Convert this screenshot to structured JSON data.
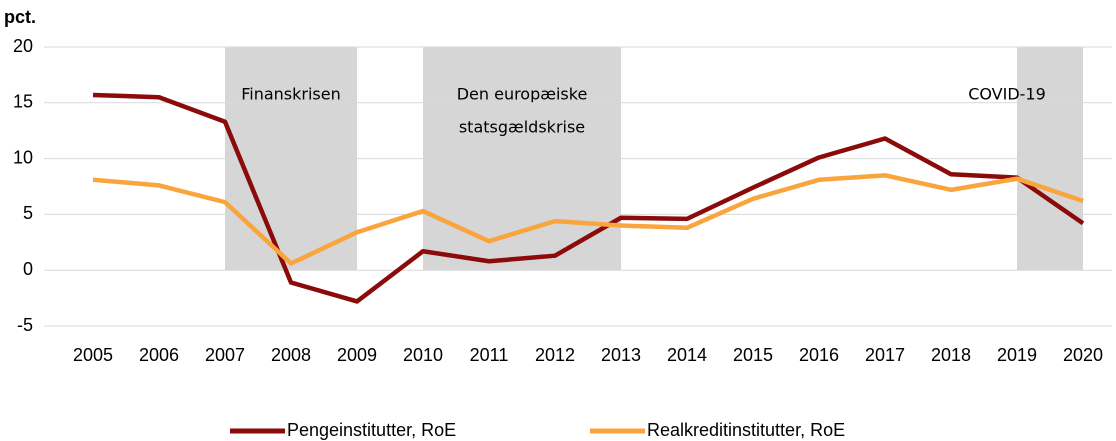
{
  "chart_data": {
    "type": "line",
    "y_label": "pct.",
    "categories": [
      "2005",
      "2006",
      "2007",
      "2008",
      "2009",
      "2010",
      "2011",
      "2012",
      "2013",
      "2014",
      "2015",
      "2016",
      "2017",
      "2018",
      "2019",
      "2020"
    ],
    "series": [
      {
        "name": "Pengeinstitutter, RoE",
        "color": "#8b0a0a",
        "values": [
          15.7,
          15.5,
          13.3,
          -1.1,
          -2.8,
          1.7,
          0.8,
          1.3,
          4.7,
          4.6,
          7.4,
          10.1,
          11.8,
          8.6,
          8.3,
          4.2
        ]
      },
      {
        "name": "Realkreditinstitutter, RoE",
        "color": "#f9a43c",
        "values": [
          8.1,
          7.6,
          6.1,
          0.6,
          3.4,
          5.3,
          2.6,
          4.4,
          4.0,
          3.8,
          6.4,
          8.1,
          8.5,
          7.2,
          8.2,
          6.2
        ]
      }
    ],
    "shaded_periods": [
      {
        "lines": [
          "Finanskrisen"
        ],
        "start": "2007",
        "end": "2009"
      },
      {
        "lines": [
          "Den europæiske",
          "statsgældskrise"
        ],
        "start": "2010",
        "end": "2013"
      },
      {
        "lines": [
          "COVID-19"
        ],
        "start": "2019",
        "end": "2020"
      }
    ],
    "shade_color": "#d6d6d6",
    "ylim": [
      -5,
      20
    ],
    "yticks": [
      -5,
      0,
      5,
      10,
      15,
      20
    ],
    "grid": true,
    "legend": "bottom"
  }
}
